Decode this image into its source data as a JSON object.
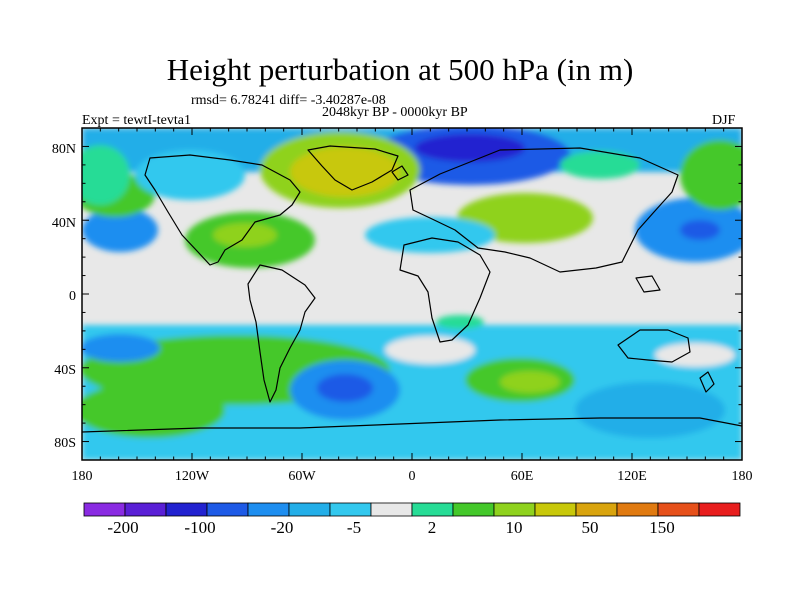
{
  "title": "Height perturbation at 500 hPa (in m)",
  "stats_line": "rmsd= 6.78241 diff= -3.40287e-08",
  "period": "2048kyr BP - 0000kyr BP",
  "experiment": "Expt = tewtI-tevta1",
  "season": "DJF",
  "axes": {
    "x_ticks": [
      "180",
      "120W",
      "60W",
      "0",
      "60E",
      "120E",
      "180"
    ],
    "y_ticks": [
      "80N",
      "40N",
      "0",
      "40S",
      "80S"
    ]
  },
  "colorbar": {
    "colors": [
      "#8a2be2",
      "#5a1fd6",
      "#2222d0",
      "#1e5ae6",
      "#1e8ef0",
      "#23aee8",
      "#33c8ee",
      "#e8e8e8",
      "#27dc96",
      "#44c82a",
      "#8fd21e",
      "#c8c80a",
      "#d9a40e",
      "#e07a10",
      "#e6501a",
      "#e81e1e"
    ],
    "labels": [
      "-200",
      "-100",
      "-20",
      "-5",
      "2",
      "10",
      "50",
      "150"
    ]
  }
}
